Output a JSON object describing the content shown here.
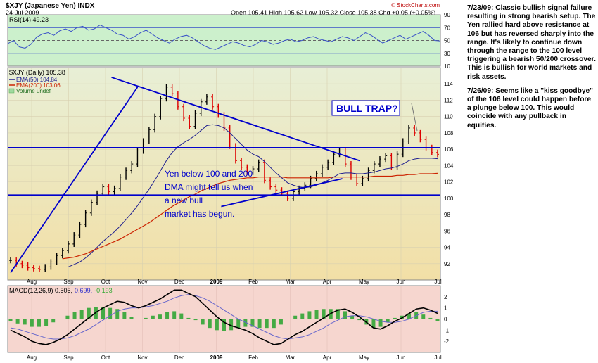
{
  "header": {
    "title": "$XJY (Japanese Yen) INDX",
    "date": "24-Jul-2009",
    "ohlc": "Open 105.41 High 105.62 Low 105.32 Close 105.38 Chg +0.05 (+0.05%)",
    "copyright": "© StockCharts.com"
  },
  "notes": [
    "7/23/09: Classic bullish signal failure resulting in strong bearish setup. The Yen rallied hard above resistance at 106 but has reversed sharply into the range. It's likely to continue down through the range to the 100 level triggering a bearish 50/200 crossover. This is bullish for world markets and risk assets.",
    "7/26/09: Seems like a \"kiss goodbye\" of the 106 level could happen before a plunge below 100. This would coincide with any pullback in equities."
  ],
  "chart_data": [
    {
      "type": "line",
      "panel": "RSI",
      "legend": "RSI(14) 49.23",
      "ylim": [
        10,
        90
      ],
      "y_ticks": [
        10,
        30,
        50,
        70,
        90
      ],
      "reference_lines": [
        30,
        50,
        70
      ],
      "series": [
        {
          "name": "RSI(14)",
          "color": "#3a52c8",
          "values": [
            45,
            50,
            40,
            38,
            44,
            55,
            60,
            62,
            58,
            65,
            68,
            64,
            70,
            72,
            66,
            68,
            74,
            70,
            66,
            60,
            58,
            52,
            56,
            62,
            66,
            60,
            54,
            50,
            46,
            52,
            56,
            58,
            54,
            48,
            42,
            38,
            36,
            40,
            44,
            48,
            46,
            42,
            40,
            44,
            50,
            48,
            44,
            46,
            50,
            52,
            48,
            50,
            54,
            56,
            52,
            50,
            48,
            52,
            56,
            54,
            50,
            56,
            62,
            58,
            52,
            46,
            50,
            54,
            58,
            52,
            56,
            60,
            64,
            58,
            50,
            49.23
          ]
        }
      ]
    },
    {
      "type": "line",
      "panel": "Price",
      "legend": [
        "$XJY (Daily) 105.38",
        "EMA(50) 104.84",
        "EMA(200) 103.06",
        "Volume undef"
      ],
      "ylim": [
        90,
        116
      ],
      "y_ticks": [
        92,
        94,
        96,
        98,
        100,
        102,
        104,
        106,
        108,
        110,
        112,
        114
      ],
      "x_ticks": [
        "Aug",
        "Sep",
        "Oct",
        "Nov",
        "Dec",
        "2009",
        "Feb",
        "Mar",
        "Apr",
        "May",
        "Jun",
        "Jul"
      ],
      "series": [
        {
          "name": "$XJY (Daily)",
          "color": "#000000",
          "values": [
            92.4,
            92.0,
            91.8,
            91.5,
            91.4,
            91.3,
            91.6,
            92.2,
            93.0,
            93.6,
            94.4,
            95.5,
            96.8,
            98.2,
            99.5,
            100.6,
            101.4,
            100.8,
            101.2,
            102.6,
            103.4,
            104.2,
            105.8,
            107.0,
            108.4,
            110.0,
            112.2,
            113.6,
            112.8,
            111.2,
            109.8,
            108.8,
            110.4,
            111.8,
            112.4,
            111.2,
            110.2,
            108.6,
            106.4,
            104.6,
            103.8,
            103.2,
            103.6,
            104.4,
            102.2,
            101.4,
            101.0,
            100.6,
            100.0,
            100.8,
            101.2,
            101.6,
            102.4,
            103.0,
            103.8,
            104.4,
            105.4,
            105.8,
            104.2,
            102.6,
            101.8,
            102.4,
            103.4,
            104.2,
            104.8,
            105.2,
            103.8,
            105.4,
            107.0,
            108.6,
            108.0,
            107.2,
            106.2,
            105.6,
            105.38
          ]
        },
        {
          "name": "EMA(50)",
          "color": "#1f1f8f",
          "values": [
            null,
            null,
            null,
            null,
            null,
            null,
            null,
            null,
            null,
            null,
            91.6,
            91.9,
            92.2,
            92.7,
            93.3,
            94.0,
            94.7,
            95.3,
            95.9,
            96.6,
            97.4,
            98.2,
            99.1,
            100.1,
            101.1,
            102.2,
            103.4,
            104.6,
            105.6,
            106.3,
            106.8,
            107.2,
            107.7,
            108.3,
            108.9,
            109.0,
            108.9,
            108.6,
            108.0,
            107.3,
            106.6,
            105.9,
            105.4,
            105.1,
            104.5,
            103.8,
            103.1,
            102.5,
            101.9,
            101.6,
            101.4,
            101.3,
            101.4,
            101.6,
            101.9,
            102.2,
            102.6,
            103.0,
            103.1,
            103.1,
            103.0,
            103.0,
            103.1,
            103.2,
            103.4,
            103.6,
            103.7,
            103.9,
            104.2,
            104.6,
            104.8,
            104.9,
            104.9,
            104.9,
            104.84
          ]
        },
        {
          "name": "EMA(200)",
          "color": "#cc2200",
          "values": [
            null,
            null,
            null,
            null,
            null,
            null,
            null,
            null,
            null,
            92.6,
            92.7,
            92.8,
            93.0,
            93.2,
            93.5,
            93.8,
            94.1,
            94.4,
            94.7,
            95.0,
            95.4,
            95.8,
            96.2,
            96.6,
            97.0,
            97.5,
            98.0,
            98.5,
            99.0,
            99.4,
            99.8,
            100.2,
            100.5,
            100.9,
            101.2,
            101.5,
            101.8,
            102.0,
            102.2,
            102.3,
            102.4,
            102.5,
            102.5,
            102.6,
            102.6,
            102.6,
            102.6,
            102.6,
            102.5,
            102.5,
            102.5,
            102.5,
            102.5,
            102.5,
            102.5,
            102.5,
            102.6,
            102.6,
            102.6,
            102.6,
            102.6,
            102.6,
            102.6,
            102.7,
            102.7,
            102.7,
            102.7,
            102.8,
            102.8,
            102.9,
            102.9,
            103.0,
            103.0,
            103.0,
            103.06
          ]
        }
      ],
      "annotations": [
        {
          "type": "hline",
          "y": 106.2,
          "color": "#0000cc"
        },
        {
          "type": "hline",
          "y": 100.4,
          "color": "#0000cc"
        },
        {
          "type": "trendline",
          "from": [
            0,
            90.9
          ],
          "to": [
            22,
            113.6
          ],
          "color": "#0000cc"
        },
        {
          "type": "trendline",
          "from": [
            17.5,
            114.8
          ],
          "to": [
            60.5,
            104.6
          ],
          "color": "#0000cc"
        },
        {
          "type": "trendline",
          "from": [
            36.5,
            99.0
          ],
          "to": [
            57.5,
            102.4
          ],
          "color": "#0000cc"
        },
        {
          "type": "text",
          "text": "Yen below 100 and 200 DMA might tell us when a new bull market has begun.",
          "color": "#0000cc"
        },
        {
          "type": "callout",
          "text": "BULL TRAP?",
          "color": "#0000cc"
        }
      ]
    },
    {
      "type": "line",
      "panel": "MACD",
      "legend": [
        "MACD(12,26,9) 0.505,",
        "0.699,",
        "-0.193"
      ],
      "ylim": [
        -3,
        3
      ],
      "y_ticks": [
        -2,
        -1,
        0,
        1,
        2
      ],
      "x_ticks": [
        "Aug",
        "Sep",
        "Oct",
        "Nov",
        "Dec",
        "2009",
        "Feb",
        "Mar",
        "Apr",
        "May",
        "Jun",
        "Jul"
      ],
      "series": [
        {
          "name": "MACD",
          "color": "#000000",
          "values": [
            -1.0,
            -1.3,
            -1.6,
            -2.0,
            -2.2,
            -2.3,
            -2.1,
            -1.8,
            -1.4,
            -0.9,
            -0.4,
            0.1,
            0.6,
            1.0,
            1.3,
            1.6,
            1.5,
            1.2,
            1.0,
            1.2,
            1.5,
            1.8,
            2.2,
            2.6,
            2.6,
            2.3,
            2.0,
            1.4,
            0.8,
            0.2,
            -0.3,
            -0.6,
            -0.8,
            -1.0,
            -1.3,
            -1.7,
            -2.0,
            -2.3,
            -2.2,
            -1.8,
            -1.4,
            -1.1,
            -0.7,
            -0.3,
            0.1,
            0.5,
            0.8,
            0.9,
            0.6,
            0.2,
            -0.3,
            -0.8,
            -0.9,
            -0.6,
            -0.2,
            0.1,
            0.5,
            0.9,
            1.0,
            0.8,
            0.505
          ]
        },
        {
          "name": "Signal",
          "color": "#6666cc",
          "values": [
            -0.8,
            -0.9,
            -1.1,
            -1.3,
            -1.5,
            -1.7,
            -1.8,
            -1.8,
            -1.7,
            -1.5,
            -1.2,
            -0.9,
            -0.5,
            -0.1,
            0.3,
            0.7,
            0.9,
            1.0,
            1.0,
            1.1,
            1.2,
            1.4,
            1.6,
            1.9,
            2.1,
            2.2,
            2.1,
            1.9,
            1.6,
            1.2,
            0.8,
            0.4,
            0.0,
            -0.3,
            -0.6,
            -0.9,
            -1.2,
            -1.5,
            -1.7,
            -1.8,
            -1.7,
            -1.6,
            -1.4,
            -1.1,
            -0.8,
            -0.4,
            -0.1,
            0.2,
            0.3,
            0.3,
            0.2,
            0.0,
            -0.2,
            -0.3,
            -0.3,
            -0.2,
            0.0,
            0.3,
            0.6,
            0.7,
            0.699
          ]
        },
        {
          "name": "Histogram",
          "color": "#339933",
          "values": [
            -0.2,
            -0.4,
            -0.5,
            -0.7,
            -0.7,
            -0.6,
            -0.3,
            0.0,
            0.3,
            0.6,
            0.8,
            1.0,
            1.1,
            1.1,
            1.0,
            0.9,
            0.6,
            0.2,
            0.0,
            0.1,
            0.3,
            0.4,
            0.6,
            0.7,
            0.5,
            0.1,
            -0.1,
            -0.5,
            -0.8,
            -1.0,
            -1.1,
            -1.0,
            -0.8,
            -0.7,
            -0.7,
            -0.8,
            -0.8,
            -0.8,
            -0.5,
            0.0,
            0.3,
            0.5,
            0.7,
            0.8,
            0.9,
            0.9,
            0.9,
            0.7,
            0.3,
            -0.1,
            -0.5,
            -0.8,
            -0.7,
            -0.3,
            0.1,
            0.3,
            0.5,
            0.6,
            0.4,
            0.1,
            -0.193
          ]
        }
      ]
    }
  ]
}
